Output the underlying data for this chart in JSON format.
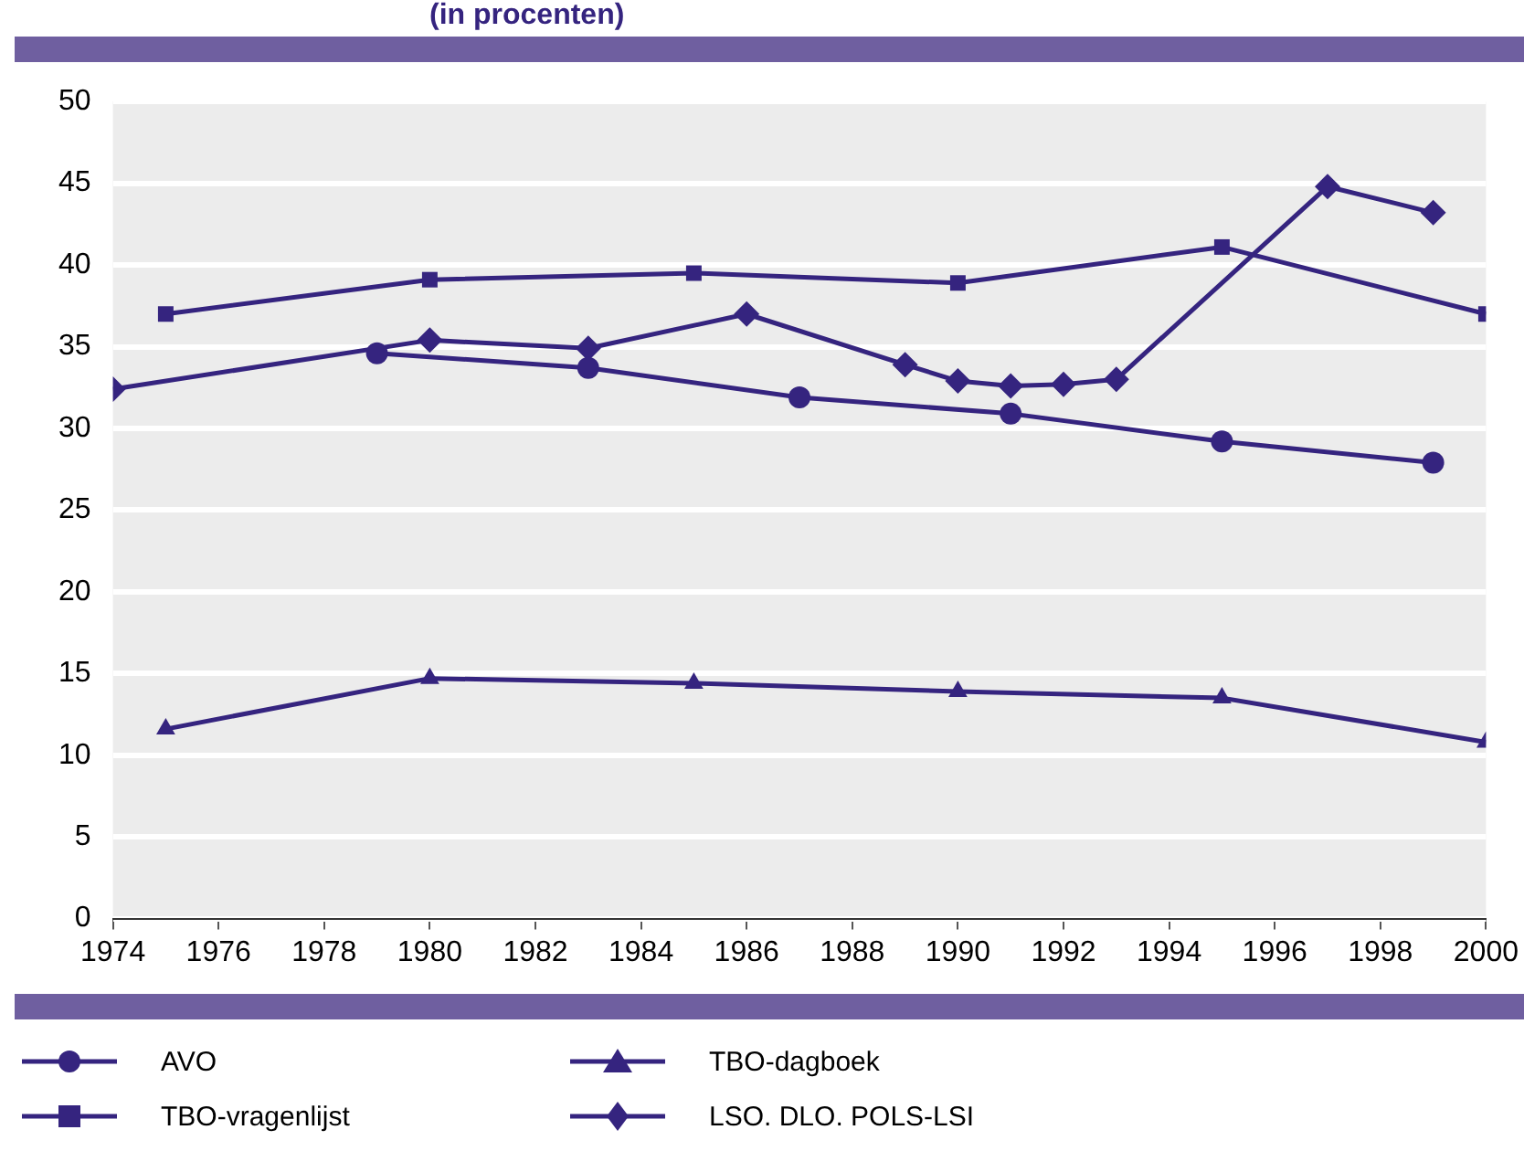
{
  "chart_data": {
    "type": "line",
    "title": "(in procenten)",
    "xlim": [
      1974,
      2000
    ],
    "xticks": [
      1974,
      1976,
      1978,
      1980,
      1982,
      1984,
      1986,
      1988,
      1990,
      1992,
      1994,
      1996,
      1998,
      2000
    ],
    "ylim": [
      0,
      50
    ],
    "yticks": [
      0,
      5,
      10,
      15,
      20,
      25,
      30,
      35,
      40,
      45,
      50
    ],
    "grid": "y",
    "legend": "bottom",
    "line_style": "solid",
    "series": [
      {
        "name": "AVO",
        "color": "#35247f",
        "marker": "circle",
        "x": [
          1979,
          1983,
          1987,
          1991,
          1995,
          1999
        ],
        "values": [
          34.6,
          33.7,
          31.9,
          30.9,
          29.2,
          27.9
        ]
      },
      {
        "name": "TBO-vragenlijst",
        "color": "#35247f",
        "marker": "square",
        "x": [
          1975,
          1980,
          1985,
          1990,
          1995,
          2000
        ],
        "values": [
          37.0,
          39.1,
          39.5,
          38.9,
          41.1,
          37.0
        ]
      },
      {
        "name": "TBO-dagboek",
        "color": "#35247f",
        "marker": "triangle",
        "x": [
          1975,
          1980,
          1985,
          1990,
          1995,
          2000
        ],
        "values": [
          11.6,
          14.7,
          14.4,
          13.9,
          13.5,
          10.8
        ]
      },
      {
        "name": "LSO. DLO. POLS-LSI",
        "color": "#35247f",
        "marker": "diamond",
        "x": [
          1974,
          1980,
          1983,
          1986,
          1989,
          1990,
          1991,
          1992,
          1993,
          1997,
          1999
        ],
        "values": [
          32.4,
          35.4,
          34.9,
          37.0,
          33.9,
          32.9,
          32.6,
          32.7,
          33.0,
          44.8,
          43.2
        ]
      }
    ]
  }
}
